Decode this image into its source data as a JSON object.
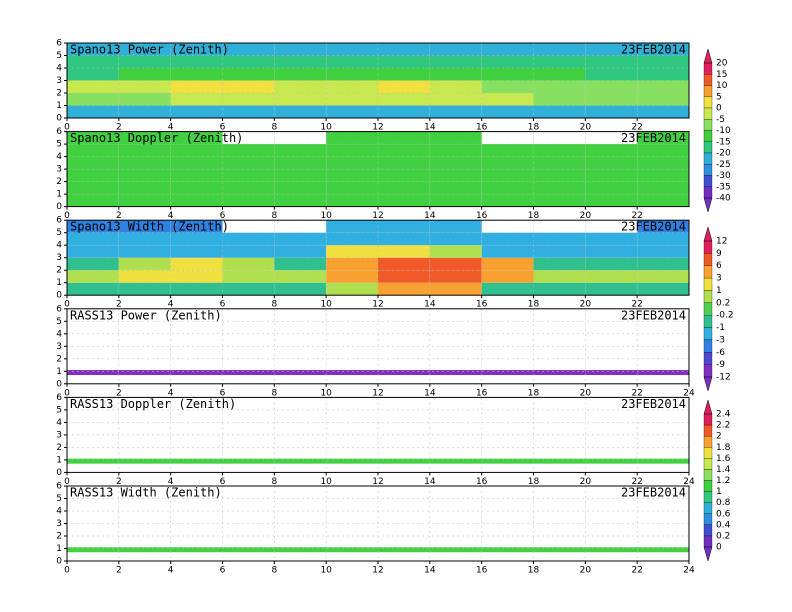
{
  "chart_data": [
    {
      "type": "heatmap",
      "title": "Spano13 Power (Zenith)",
      "date": "23FEB2014",
      "xlim": [
        0,
        24
      ],
      "ylim": [
        0,
        6
      ],
      "xticks": [
        0,
        2,
        4,
        6,
        8,
        10,
        12,
        14,
        16,
        18,
        20,
        22
      ],
      "yticks": [
        0,
        1,
        2,
        3,
        4,
        5,
        6
      ],
      "grid": true,
      "x_edges": [
        0,
        2,
        4,
        6,
        8,
        10,
        12,
        14,
        16,
        18,
        20,
        22,
        24
      ],
      "y_edges": [
        0,
        1,
        2,
        3,
        4,
        5,
        6
      ],
      "z": [
        [
          -25,
          -25,
          -25,
          -25,
          -25,
          -25,
          -25,
          -25,
          -25,
          -25,
          -25,
          -25
        ],
        [
          -10,
          -10,
          -5,
          -5,
          -5,
          -5,
          -5,
          -5,
          -5,
          -10,
          -10,
          -10
        ],
        [
          -5,
          -5,
          0,
          0,
          -5,
          -5,
          0,
          -5,
          -10,
          -10,
          -10,
          -10
        ],
        [
          -20,
          -15,
          -15,
          -15,
          -15,
          -15,
          -15,
          -15,
          -15,
          -15,
          -20,
          -20
        ],
        [
          -20,
          -20,
          -20,
          -20,
          -20,
          -20,
          -20,
          -20,
          -20,
          -20,
          -20,
          -20
        ],
        [
          -25,
          -25,
          -25,
          -25,
          -25,
          -25,
          -25,
          -25,
          -25,
          -25,
          -25,
          -25
        ]
      ],
      "colorbar": {
        "levels": [
          20,
          15,
          10,
          5,
          0,
          -5,
          -10,
          -15,
          -20,
          -25,
          -30,
          -35,
          -40
        ],
        "colors": [
          "#e0205a",
          "#f05a28",
          "#f8a030",
          "#f0e040",
          "#c8e850",
          "#88e060",
          "#40d040",
          "#30c880",
          "#30b0d8",
          "#3090e0",
          "#4050d0",
          "#7030c0"
        ]
      }
    },
    {
      "type": "heatmap",
      "title": "Spano13 Doppler (Zenith)",
      "date": "23FEB2014",
      "xlim": [
        0,
        24
      ],
      "ylim": [
        0,
        6
      ],
      "xticks": [
        0,
        2,
        4,
        6,
        8,
        10,
        12,
        14,
        16,
        18,
        20,
        22
      ],
      "yticks": [
        0,
        1,
        2,
        3,
        4,
        5,
        6
      ],
      "grid": true,
      "x_edges": [
        0,
        2,
        4,
        6,
        8,
        10,
        12,
        14,
        16,
        18,
        20,
        22,
        24
      ],
      "y_edges": [
        0,
        1,
        2,
        3,
        4,
        5,
        6
      ],
      "z": [
        [
          -15,
          -15,
          -15,
          -15,
          -15,
          -15,
          -15,
          -15,
          -15,
          -15,
          -15,
          -15
        ],
        [
          -12,
          -12,
          -12,
          -12,
          -12,
          -12,
          -12,
          -12,
          -12,
          -12,
          -12,
          -12
        ],
        [
          -12,
          -12,
          -12,
          -12,
          -12,
          -12,
          -12,
          -12,
          -12,
          -12,
          -12,
          -12
        ],
        [
          -12,
          -12,
          -12,
          -12,
          -12,
          -12,
          -12,
          -12,
          -12,
          -12,
          -12,
          -12
        ],
        [
          -12,
          -12,
          -12,
          -12,
          -12,
          -12,
          -12,
          -12,
          -12,
          -12,
          -12,
          -12
        ],
        [
          -15,
          -15,
          -15,
          null,
          null,
          -15,
          -15,
          -15,
          null,
          null,
          null,
          -15
        ]
      ]
    },
    {
      "type": "heatmap",
      "title": "Spano13 Width (Zenith)",
      "date": "23FEB2014",
      "xlim": [
        0,
        24
      ],
      "ylim": [
        0,
        6
      ],
      "xticks": [
        0,
        2,
        4,
        6,
        8,
        10,
        12,
        14,
        16,
        18,
        20,
        22
      ],
      "yticks": [
        0,
        1,
        2,
        3,
        4,
        5,
        6
      ],
      "grid": true,
      "x_edges": [
        0,
        2,
        4,
        6,
        8,
        10,
        12,
        14,
        16,
        18,
        20,
        22,
        24
      ],
      "y_edges": [
        0,
        1,
        2,
        3,
        4,
        5,
        6
      ],
      "z": [
        [
          -1,
          -1,
          -1,
          -1,
          -1,
          0.5,
          3,
          3,
          -1,
          -1,
          -1,
          -1
        ],
        [
          0.5,
          1.5,
          1.5,
          0.5,
          0.5,
          4,
          7,
          7,
          4,
          0.5,
          0.5,
          0.5
        ],
        [
          -1,
          0.5,
          1.5,
          0.5,
          -1,
          4,
          7,
          7,
          4,
          -1,
          -1,
          -1
        ],
        [
          -2,
          -2,
          -2,
          -2,
          -2,
          1.5,
          1.5,
          0.5,
          -2,
          -2,
          -2,
          -2
        ],
        [
          -2,
          -2,
          -2,
          -2,
          -2,
          -2,
          -2,
          -2,
          -2,
          -2,
          -2,
          -2
        ],
        [
          -4,
          -4,
          -4,
          null,
          null,
          -2,
          -2,
          -2,
          null,
          null,
          null,
          -4
        ]
      ],
      "colorbar": {
        "levels": [
          12,
          9,
          6,
          3,
          1,
          0.2,
          -0.2,
          -1,
          -3,
          -6,
          -9,
          -12
        ],
        "colors": [
          "#e0205a",
          "#f05a28",
          "#f8a030",
          "#f0e040",
          "#b0e050",
          "#50d050",
          "#30c090",
          "#30b0e0",
          "#3080e0",
          "#5048d0",
          "#8030c0"
        ]
      }
    },
    {
      "type": "heatmap",
      "title": "RASS13 Power (Zenith)",
      "date": "23FEB2014",
      "xlim": [
        0,
        24
      ],
      "ylim": [
        0,
        6
      ],
      "xticks": [
        0,
        2,
        4,
        6,
        8,
        10,
        12,
        14,
        16,
        18,
        20,
        22,
        24
      ],
      "yticks": [
        0,
        1,
        2,
        3,
        4,
        5,
        6
      ],
      "grid": true,
      "x_edges": [
        0,
        2,
        4,
        6,
        8,
        10,
        12,
        14,
        16,
        18,
        20,
        22,
        24
      ],
      "y_edges": [
        0.7,
        1.1
      ],
      "z": [
        [
          -11,
          -11,
          -11,
          -11,
          -11,
          -11,
          -11,
          -11,
          -11,
          -11,
          -11,
          -11
        ]
      ]
    },
    {
      "type": "heatmap",
      "title": "RASS13 Doppler (Zenith)",
      "date": "23FEB2014",
      "xlim": [
        0,
        24
      ],
      "ylim": [
        0,
        6
      ],
      "xticks": [
        0,
        2,
        4,
        6,
        8,
        10,
        12,
        14,
        16,
        18,
        20,
        22,
        24
      ],
      "yticks": [
        0,
        1,
        2,
        3,
        4,
        5,
        6
      ],
      "grid": true,
      "x_edges": [
        0,
        2,
        4,
        6,
        8,
        10,
        12,
        14,
        16,
        18,
        20,
        22,
        24
      ],
      "y_edges": [
        0.7,
        1.1
      ],
      "z": [
        [
          1.1,
          1.1,
          1.1,
          1.1,
          1.1,
          1.1,
          1.1,
          1.1,
          1.1,
          1.1,
          1.1,
          1.1
        ]
      ],
      "colorbar": {
        "levels": [
          2.4,
          2.2,
          2,
          1.8,
          1.6,
          1.4,
          1.2,
          1,
          0.8,
          0.6,
          0.4,
          0.2,
          0
        ],
        "colors": [
          "#e0205a",
          "#f05a28",
          "#f8a030",
          "#f0e040",
          "#c8e850",
          "#88e060",
          "#40d040",
          "#30c880",
          "#30b0d8",
          "#3090e0",
          "#4050d0",
          "#7030c0"
        ]
      }
    },
    {
      "type": "heatmap",
      "title": "RASS13 Width (Zenith)",
      "date": "23FEB2014",
      "xlim": [
        0,
        24
      ],
      "ylim": [
        0,
        6
      ],
      "xticks": [
        0,
        2,
        4,
        6,
        8,
        10,
        12,
        14,
        16,
        18,
        20,
        22,
        24
      ],
      "yticks": [
        0,
        1,
        2,
        3,
        4,
        5,
        6
      ],
      "grid": true,
      "x_edges": [
        0,
        2,
        4,
        6,
        8,
        10,
        12,
        14,
        16,
        18,
        20,
        22,
        24
      ],
      "y_edges": [
        0.7,
        1.1
      ],
      "z": [
        [
          1,
          1,
          1,
          1,
          1,
          1,
          1,
          1,
          1,
          1,
          1,
          1
        ]
      ]
    }
  ]
}
